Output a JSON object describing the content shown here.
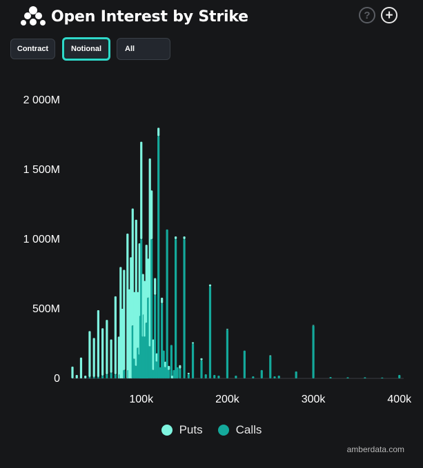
{
  "header": {
    "title": "Open Interest by Strike"
  },
  "controls": {
    "contract_label": "Contract",
    "notional_label": "Notional",
    "filter_value": "All"
  },
  "credit": "amberdata.com",
  "colors": {
    "background": "#161719",
    "puts": "#7ff5e0",
    "calls": "#14a99b",
    "accent": "#2fd8c9"
  },
  "chart_data": {
    "type": "bar",
    "stacked": true,
    "title": "Open Interest by Strike",
    "xlabel": "",
    "ylabel": "",
    "xlim": [
      20000,
      405000
    ],
    "ylim": [
      0,
      2000
    ],
    "y_unit": "M",
    "x_ticks": [
      {
        "value": 100000,
        "label": "100k"
      },
      {
        "value": 200000,
        "label": "200k"
      },
      {
        "value": 300000,
        "label": "300k"
      },
      {
        "value": 400000,
        "label": "400k"
      }
    ],
    "y_ticks": [
      {
        "value": 0,
        "label": "0"
      },
      {
        "value": 500,
        "label": "500M"
      },
      {
        "value": 1000,
        "label": "1 000M"
      },
      {
        "value": 1500,
        "label": "1 500M"
      },
      {
        "value": 2000,
        "label": "2 000M"
      }
    ],
    "legend": {
      "position": "bottom-center"
    },
    "series": [
      {
        "name": "Puts",
        "color": "#7ff5e0",
        "points": [
          [
            20000,
            85
          ],
          [
            25000,
            25
          ],
          [
            30000,
            150
          ],
          [
            35000,
            20
          ],
          [
            40000,
            330
          ],
          [
            45000,
            280
          ],
          [
            50000,
            480
          ],
          [
            55000,
            340
          ],
          [
            60000,
            390
          ],
          [
            65000,
            240
          ],
          [
            70000,
            560
          ],
          [
            74000,
            300
          ],
          [
            76000,
            800
          ],
          [
            78000,
            500
          ],
          [
            80000,
            720
          ],
          [
            84000,
            1040
          ],
          [
            86000,
            640
          ],
          [
            88000,
            870
          ],
          [
            90000,
            840
          ],
          [
            92000,
            480
          ],
          [
            94000,
            1050
          ],
          [
            96000,
            400
          ],
          [
            98000,
            800
          ],
          [
            100000,
            700
          ],
          [
            102000,
            450
          ],
          [
            104000,
            400
          ],
          [
            106000,
            560
          ],
          [
            108000,
            280
          ],
          [
            110000,
            1350
          ],
          [
            112000,
            350
          ],
          [
            114000,
            220
          ],
          [
            116000,
            120
          ],
          [
            118000,
            60
          ],
          [
            120000,
            60
          ],
          [
            124000,
            40
          ],
          [
            128000,
            40
          ],
          [
            132000,
            30
          ],
          [
            136000,
            20
          ],
          [
            140000,
            20
          ],
          [
            145000,
            25
          ],
          [
            150000,
            20
          ],
          [
            155000,
            10
          ],
          [
            160000,
            10
          ],
          [
            170000,
            15
          ],
          [
            180000,
            15
          ],
          [
            200000,
            5
          ],
          [
            250000,
            5
          ],
          [
            300000,
            3
          ]
        ]
      },
      {
        "name": "Calls",
        "color": "#14a99b",
        "points": [
          [
            40000,
            10
          ],
          [
            45000,
            10
          ],
          [
            50000,
            10
          ],
          [
            55000,
            20
          ],
          [
            60000,
            30
          ],
          [
            65000,
            40
          ],
          [
            70000,
            30
          ],
          [
            75000,
            30
          ],
          [
            80000,
            60
          ],
          [
            85000,
            60
          ],
          [
            90000,
            380
          ],
          [
            92000,
            140
          ],
          [
            94000,
            90
          ],
          [
            96000,
            220
          ],
          [
            98000,
            170
          ],
          [
            99000,
            450
          ],
          [
            100000,
            1000
          ],
          [
            101000,
            320
          ],
          [
            102000,
            300
          ],
          [
            103000,
            460
          ],
          [
            104000,
            300
          ],
          [
            105000,
            180
          ],
          [
            106000,
            400
          ],
          [
            107000,
            150
          ],
          [
            108000,
            580
          ],
          [
            110000,
            230
          ],
          [
            112000,
            1000
          ],
          [
            114000,
            60
          ],
          [
            116000,
            600
          ],
          [
            118000,
            120
          ],
          [
            120000,
            1740
          ],
          [
            122000,
            80
          ],
          [
            124000,
            540
          ],
          [
            126000,
            200
          ],
          [
            128000,
            80
          ],
          [
            130000,
            1070
          ],
          [
            132000,
            60
          ],
          [
            135000,
            240
          ],
          [
            138000,
            60
          ],
          [
            140000,
            1000
          ],
          [
            142000,
            80
          ],
          [
            145000,
            70
          ],
          [
            150000,
            1000
          ],
          [
            155000,
            30
          ],
          [
            160000,
            250
          ],
          [
            170000,
            130
          ],
          [
            175000,
            30
          ],
          [
            180000,
            660
          ],
          [
            185000,
            25
          ],
          [
            190000,
            20
          ],
          [
            200000,
            350
          ],
          [
            210000,
            20
          ],
          [
            220000,
            200
          ],
          [
            230000,
            15
          ],
          [
            240000,
            60
          ],
          [
            250000,
            160
          ],
          [
            255000,
            15
          ],
          [
            260000,
            20
          ],
          [
            280000,
            50
          ],
          [
            300000,
            380
          ],
          [
            320000,
            10
          ],
          [
            340000,
            8
          ],
          [
            360000,
            8
          ],
          [
            380000,
            6
          ],
          [
            400000,
            25
          ]
        ]
      }
    ]
  }
}
